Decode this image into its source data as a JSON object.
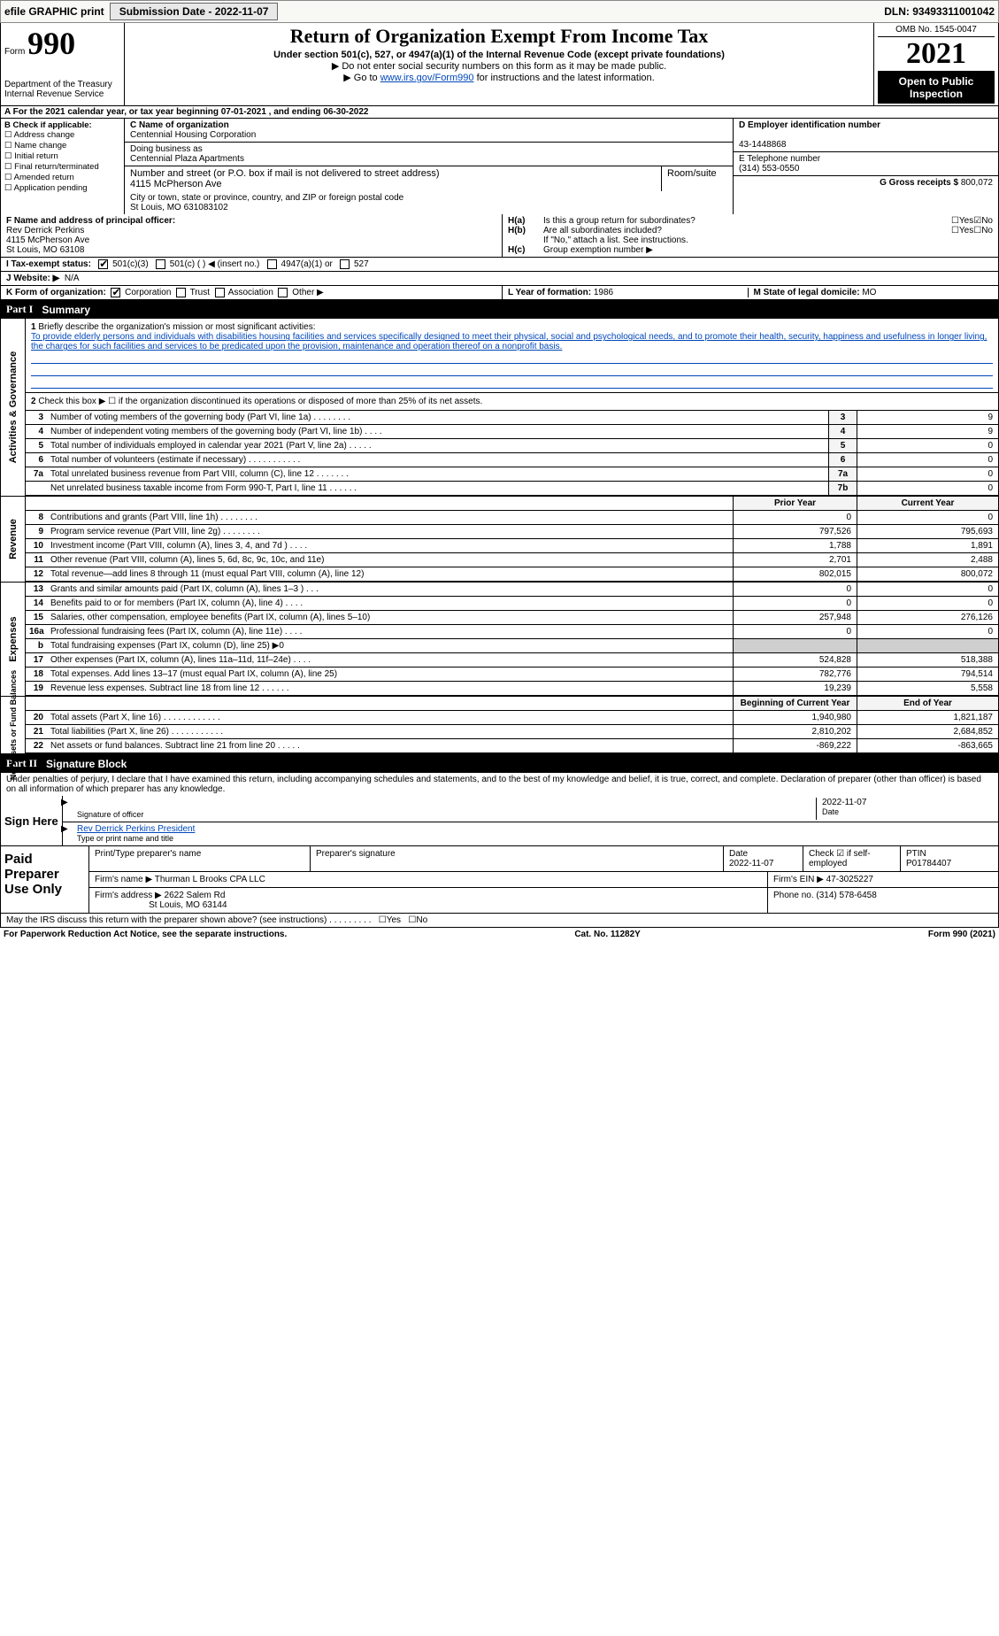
{
  "top": {
    "efile": "efile GRAPHIC print",
    "subdate_label": "Submission Date - 2022-11-07",
    "dln": "DLN: 93493311001042"
  },
  "header": {
    "form_label": "Form",
    "form_num": "990",
    "title": "Return of Organization Exempt From Income Tax",
    "sub1": "Under section 501(c), 527, or 4947(a)(1) of the Internal Revenue Code (except private foundations)",
    "sub2": "▶ Do not enter social security numbers on this form as it may be made public.",
    "sub3_pre": "▶ Go to ",
    "sub3_link": "www.irs.gov/Form990",
    "sub3_post": " for instructions and the latest information.",
    "dept": "Department of the Treasury",
    "irs": "Internal Revenue Service",
    "omb": "OMB No. 1545-0047",
    "year": "2021",
    "open": "Open to Public Inspection"
  },
  "svc": {
    "a_text": "A For the 2021 calendar year, or tax year beginning 07-01-2021    , and ending 06-30-2022"
  },
  "entity": {
    "b_label": "B Check if applicable:",
    "b_opts": [
      "Address change",
      "Name change",
      "Initial return",
      "Final return/terminated",
      "Amended return",
      "Application pending"
    ],
    "c_label": "C Name of organization",
    "c_name": "Centennial Housing Corporation",
    "dba_label": "Doing business as",
    "dba": "Centennial Plaza Apartments",
    "addr_label": "Number and street (or P.O. box if mail is not delivered to street address)",
    "room_label": "Room/suite",
    "addr": "4115 McPherson Ave",
    "city_label": "City or town, state or province, country, and ZIP or foreign postal code",
    "city": "St Louis, MO  631083102",
    "d_label": "D Employer identification number",
    "d_val": "43-1448868",
    "e_label": "E Telephone number",
    "e_val": "(314) 553-0550",
    "g_label": "G Gross receipts $",
    "g_val": "800,072"
  },
  "meta": {
    "f_label": "F Name and address of principal officer:",
    "f_name": "Rev Derrick Perkins",
    "f_addr1": "4115 McPherson Ave",
    "f_addr2": "St Louis, MO  63108",
    "ha_label": "H(a)",
    "ha_text": "Is this a group return for subordinates?",
    "ha_yes": "Yes",
    "ha_no": "No",
    "hb_label": "H(b)",
    "hb_text": "Are all subordinates included?",
    "hb_note": "If \"No,\" attach a list. See instructions.",
    "hc_label": "H(c)",
    "hc_text": "Group exemption number ▶",
    "i_label": "I Tax-exempt status:",
    "i_501c3": "501(c)(3)",
    "i_501c": "501(c) (   ) ◀ (insert no.)",
    "i_4947": "4947(a)(1) or",
    "i_527": "527",
    "j_label": "J   Website: ▶",
    "j_val": "N/A",
    "k_label": "K Form of organization:",
    "k_corp": "Corporation",
    "k_trust": "Trust",
    "k_assoc": "Association",
    "k_other": "Other ▶",
    "l_label": "L Year of formation:",
    "l_val": "1986",
    "m_label": "M State of legal domicile:",
    "m_val": "MO"
  },
  "part1": {
    "hdr_num": "Part I",
    "hdr_title": "Summary",
    "tab_gov": "Activities & Governance",
    "tab_rev": "Revenue",
    "tab_exp": "Expenses",
    "tab_net": "Net Assets or Fund Balances",
    "line1_label": "1",
    "line1_text": "Briefly describe the organization's mission or most significant activities:",
    "mission": "To provide elderly persons and individuals with disabilities housing facilities and services specifically designed to meet their physical, social and psychological needs, and to promote their health, security, happiness and usefulness in longer living, the charges for such facilities and services to be predicated upon the provision, maintenance and operation thereof on a nonprofit basis.",
    "line2_text": "Check this box ▶ ☐ if the organization discontinued its operations or disposed of more than 25% of its net assets.",
    "lines_gov": [
      {
        "no": "3",
        "text": "Number of voting members of the governing body (Part VI, line 1a)  .    .    .    .    .    .    .    .",
        "box": "3",
        "val": "9"
      },
      {
        "no": "4",
        "text": "Number of independent voting members of the governing body (Part VI, line 1b)  .    .    .    .",
        "box": "4",
        "val": "9"
      },
      {
        "no": "5",
        "text": "Total number of individuals employed in calendar year 2021 (Part V, line 2a)  .    .    .    .    .",
        "box": "5",
        "val": "0"
      },
      {
        "no": "6",
        "text": "Total number of volunteers (estimate if necessary)  .    .    .    .    .    .    .    .    .    .    .",
        "box": "6",
        "val": "0"
      },
      {
        "no": "7a",
        "text": "Total unrelated business revenue from Part VIII, column (C), line 12   .    .    .    .    .    .    .",
        "box": "7a",
        "val": "0"
      },
      {
        "no": "",
        "text": "Net unrelated business taxable income from Form 990-T, Part I, line 11  .    .    .    .    .    .",
        "box": "7b",
        "val": "0"
      }
    ],
    "col_prior": "Prior Year",
    "col_curr": "Current Year",
    "lines_rev": [
      {
        "no": "8",
        "text": "Contributions and grants (Part VIII, line 1h)  .    .    .    .    .    .    .    .",
        "p": "0",
        "c": "0"
      },
      {
        "no": "9",
        "text": "Program service revenue (Part VIII, line 2g)  .    .    .    .    .    .    .    .",
        "p": "797,526",
        "c": "795,693"
      },
      {
        "no": "10",
        "text": "Investment income (Part VIII, column (A), lines 3, 4, and 7d )  .    .    .    .",
        "p": "1,788",
        "c": "1,891"
      },
      {
        "no": "11",
        "text": "Other revenue (Part VIII, column (A), lines 5, 6d, 8c, 9c, 10c, and 11e)",
        "p": "2,701",
        "c": "2,488"
      },
      {
        "no": "12",
        "text": "Total revenue—add lines 8 through 11 (must equal Part VIII, column (A), line 12)",
        "p": "802,015",
        "c": "800,072"
      }
    ],
    "lines_exp": [
      {
        "no": "13",
        "text": "Grants and similar amounts paid (Part IX, column (A), lines 1–3 )  .    .    .",
        "p": "0",
        "c": "0"
      },
      {
        "no": "14",
        "text": "Benefits paid to or for members (Part IX, column (A), line 4)  .    .    .    .",
        "p": "0",
        "c": "0"
      },
      {
        "no": "15",
        "text": "Salaries, other compensation, employee benefits (Part IX, column (A), lines 5–10)",
        "p": "257,948",
        "c": "276,126"
      },
      {
        "no": "16a",
        "text": "Professional fundraising fees (Part IX, column (A), line 11e)  .    .    .    .",
        "p": "0",
        "c": "0"
      },
      {
        "no": "b",
        "text": "Total fundraising expenses (Part IX, column (D), line 25) ▶0",
        "p": "",
        "c": ""
      },
      {
        "no": "17",
        "text": "Other expenses (Part IX, column (A), lines 11a–11d, 11f–24e)  .    .    .    .",
        "p": "524,828",
        "c": "518,388"
      },
      {
        "no": "18",
        "text": "Total expenses. Add lines 13–17 (must equal Part IX, column (A), line 25)",
        "p": "782,776",
        "c": "794,514"
      },
      {
        "no": "19",
        "text": "Revenue less expenses. Subtract line 18 from line 12  .    .    .    .    .    .",
        "p": "19,239",
        "c": "5,558"
      }
    ],
    "col_beg": "Beginning of Current Year",
    "col_end": "End of Year",
    "lines_net": [
      {
        "no": "20",
        "text": "Total assets (Part X, line 16)  .    .    .    .    .    .    .    .    .    .    .    .",
        "p": "1,940,980",
        "c": "1,821,187"
      },
      {
        "no": "21",
        "text": "Total liabilities (Part X, line 26)  .    .    .    .    .    .    .    .    .    .    .",
        "p": "2,810,202",
        "c": "2,684,852"
      },
      {
        "no": "22",
        "text": "Net assets or fund balances. Subtract line 21 from line 20  .    .    .    .    .",
        "p": "-869,222",
        "c": "-863,665"
      }
    ]
  },
  "part2": {
    "hdr_num": "Part II",
    "hdr_title": "Signature Block",
    "declare": "Under penalties of perjury, I declare that I have examined this return, including accompanying schedules and statements, and to the best of my knowledge and belief, it is true, correct, and complete. Declaration of preparer (other than officer) is based on all information of which preparer has any knowledge."
  },
  "sign": {
    "left": "Sign Here",
    "sig_label": "Signature of officer",
    "date": "2022-11-07",
    "date_label": "Date",
    "name": "Rev Derrick Perkins  President",
    "name_label": "Type or print name and title"
  },
  "prep": {
    "left": "Paid Preparer Use Only",
    "h_name": "Print/Type preparer's name",
    "h_sig": "Preparer's signature",
    "h_date": "Date",
    "date": "2022-11-07",
    "check_label": "Check ☑ if self-employed",
    "ptin_label": "PTIN",
    "ptin": "P01784407",
    "firm_name_label": "Firm's name    ▶",
    "firm_name": "Thurman L Brooks CPA LLC",
    "firm_ein_label": "Firm's EIN ▶",
    "firm_ein": "47-3025227",
    "firm_addr_label": "Firm's address ▶",
    "firm_addr1": "2622 Salem Rd",
    "firm_addr2": "St Louis, MO  63144",
    "phone_label": "Phone no.",
    "phone": "(314) 578-6458"
  },
  "discuss": {
    "text": "May the IRS discuss this return with the preparer shown above? (see instructions)   .    .    .    .    .    .    .    .    .",
    "yes": "Yes",
    "no": "No"
  },
  "footer": {
    "left": "For Paperwork Reduction Act Notice, see the separate instructions.",
    "mid": "Cat. No. 11282Y",
    "right": "Form 990 (2021)"
  },
  "colors": {
    "link": "#0047bb",
    "black": "#000000",
    "bg": "#ffffff",
    "shade": "#f4f4f4"
  }
}
